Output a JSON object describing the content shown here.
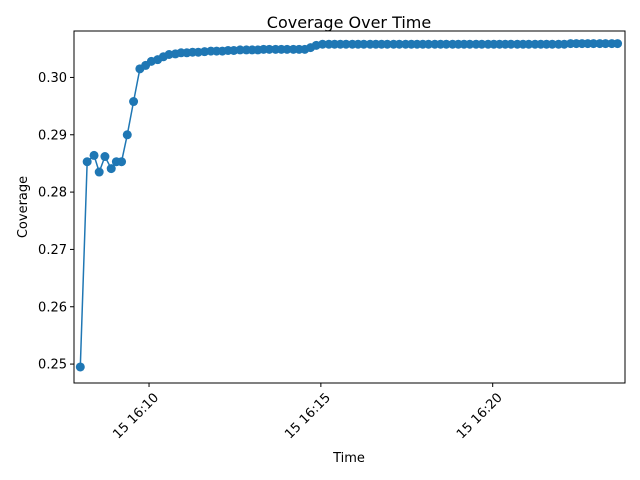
{
  "chart_data": {
    "type": "line",
    "title": "Coverage Over Time",
    "xlabel": "Time",
    "ylabel": "Coverage",
    "x_tick_labels": [
      "15 16:10",
      "15 16:15",
      "15 16:20"
    ],
    "x_tick_values": [
      "16:10:00",
      "16:15:00",
      "16:20:00"
    ],
    "y_ticks": [
      "0.25",
      "0.26",
      "0.27",
      "0.28",
      "0.29",
      "0.30"
    ],
    "xlim": [
      "16:07:49",
      "16:23:51"
    ],
    "ylim": [
      0.2467,
      0.3081
    ],
    "grid": false,
    "legend": "none",
    "color": "#1f77b4",
    "marker": "circle",
    "series": [
      {
        "x": [
          "16:08:00",
          "16:08:12",
          "16:08:24",
          "16:08:33",
          "16:08:43",
          "16:08:54",
          "16:09:03",
          "16:09:12",
          "16:09:22",
          "16:09:33",
          "16:09:44",
          "16:09:54",
          "16:10:04",
          "16:10:15",
          "16:10:25",
          "16:10:35",
          "16:10:46",
          "16:10:56",
          "16:11:06",
          "16:11:16",
          "16:11:26",
          "16:11:37",
          "16:11:48",
          "16:11:58",
          "16:12:08",
          "16:12:18",
          "16:12:28",
          "16:12:39",
          "16:12:50",
          "16:13:00",
          "16:13:10",
          "16:13:20",
          "16:13:30",
          "16:13:41",
          "16:13:51",
          "16:14:01",
          "16:14:12",
          "16:14:22",
          "16:14:32",
          "16:14:42",
          "16:14:52",
          "16:15:03",
          "16:15:14",
          "16:15:24",
          "16:15:34",
          "16:15:44",
          "16:15:55",
          "16:16:05",
          "16:16:15",
          "16:16:26",
          "16:16:36",
          "16:16:46",
          "16:16:56",
          "16:17:07",
          "16:17:17",
          "16:17:28",
          "16:17:38",
          "16:17:48",
          "16:17:58",
          "16:18:08",
          "16:18:19",
          "16:18:29",
          "16:18:39",
          "16:18:50",
          "16:19:00",
          "16:19:10",
          "16:19:20",
          "16:19:31",
          "16:19:41",
          "16:19:52",
          "16:20:02",
          "16:20:12",
          "16:20:22",
          "16:20:32",
          "16:20:43",
          "16:20:53",
          "16:21:03",
          "16:21:14",
          "16:21:24",
          "16:21:34",
          "16:21:44",
          "16:21:55",
          "16:22:05",
          "16:22:16",
          "16:22:26",
          "16:22:36",
          "16:22:46",
          "16:22:56",
          "16:23:07",
          "16:23:17",
          "16:23:28",
          "16:23:38"
        ],
        "y": [
          0.2495,
          0.2853,
          0.2864,
          0.2835,
          0.2862,
          0.2841,
          0.2853,
          0.2853,
          0.29,
          0.2958,
          0.3015,
          0.3021,
          0.3028,
          0.3031,
          0.3036,
          0.304,
          0.3041,
          0.3043,
          0.3043,
          0.3044,
          0.3044,
          0.3045,
          0.3046,
          0.3046,
          0.3046,
          0.3047,
          0.3047,
          0.3048,
          0.3048,
          0.3048,
          0.3048,
          0.3049,
          0.3049,
          0.3049,
          0.3049,
          0.3049,
          0.3049,
          0.3049,
          0.3049,
          0.3052,
          0.3056,
          0.3058,
          0.3058,
          0.3058,
          0.3058,
          0.3058,
          0.3058,
          0.3058,
          0.3058,
          0.3058,
          0.3058,
          0.3058,
          0.3058,
          0.3058,
          0.3058,
          0.3058,
          0.3058,
          0.3058,
          0.3058,
          0.3058,
          0.3058,
          0.3058,
          0.3058,
          0.3058,
          0.3058,
          0.3058,
          0.3058,
          0.3058,
          0.3058,
          0.3058,
          0.3058,
          0.3058,
          0.3058,
          0.3058,
          0.3058,
          0.3058,
          0.3058,
          0.3058,
          0.3058,
          0.3058,
          0.3058,
          0.3058,
          0.3058,
          0.3059,
          0.3059,
          0.3059,
          0.3059,
          0.3059,
          0.3059,
          0.3059,
          0.3059,
          0.3059
        ]
      }
    ]
  }
}
